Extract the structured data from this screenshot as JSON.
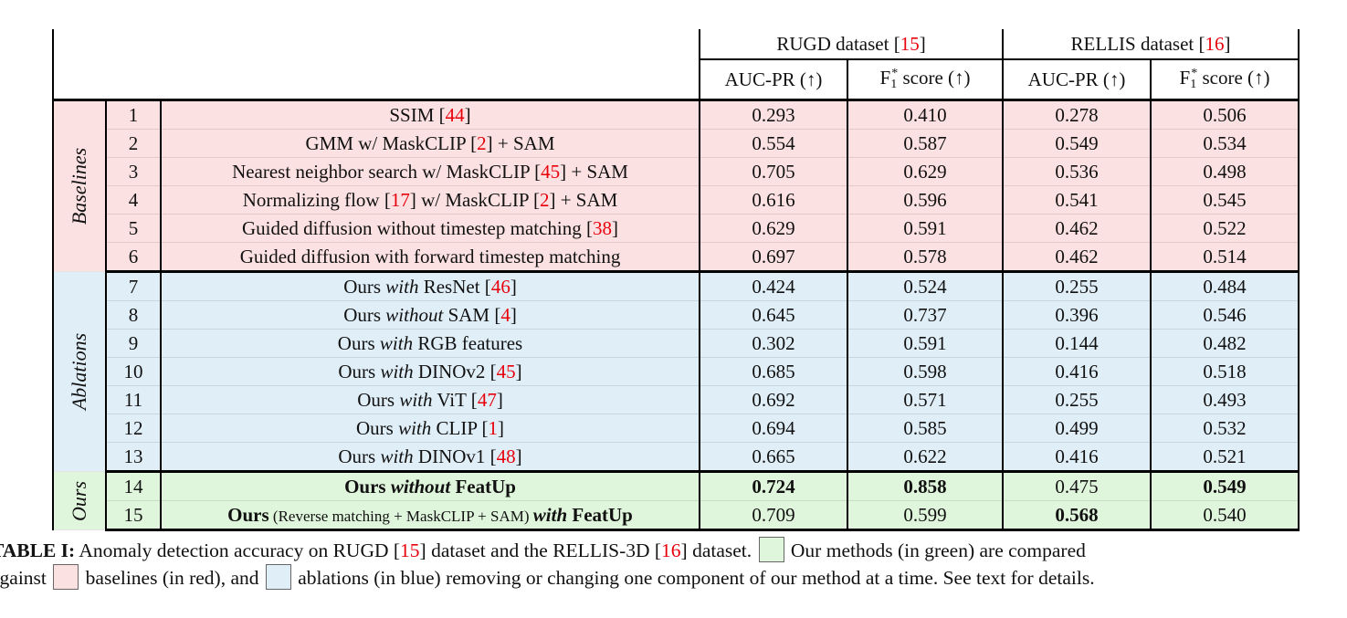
{
  "header": {
    "rugd": "RUGD dataset",
    "rugd_ref": "15",
    "rellis": "RELLIS dataset",
    "rellis_ref": "16",
    "auc": "AUC-PR (↑)",
    "f1_base": "F",
    "f1_sub": "1",
    "f1_sup": "*",
    "f1_rest": " score (↑)"
  },
  "groups": {
    "baselines": "Baselines",
    "ablations": "Ablations",
    "ours": "Ours"
  },
  "rows": [
    {
      "n": "1",
      "t1": "SSIM [",
      "r1": "44",
      "t2": "]",
      "v": [
        "0.293",
        "0.410",
        "0.278",
        "0.506"
      ]
    },
    {
      "n": "2",
      "t1": "GMM w/ MaskCLIP [",
      "r1": "2",
      "t2": "] + SAM",
      "v": [
        "0.554",
        "0.587",
        "0.549",
        "0.534"
      ]
    },
    {
      "n": "3",
      "t1": "Nearest neighbor search w/ MaskCLIP [",
      "r1": "45",
      "t2": "] + SAM",
      "v": [
        "0.705",
        "0.629",
        "0.536",
        "0.498"
      ]
    },
    {
      "n": "4",
      "t1": "Normalizing flow [",
      "r1": "17",
      "t2": "] w/ MaskCLIP [",
      "r2": "2",
      "t3": "] + SAM",
      "v": [
        "0.616",
        "0.596",
        "0.541",
        "0.545"
      ]
    },
    {
      "n": "5",
      "t1": "Guided diffusion without timestep matching [",
      "r1": "38",
      "t2": "]",
      "v": [
        "0.629",
        "0.591",
        "0.462",
        "0.522"
      ]
    },
    {
      "n": "6",
      "t1": "Guided diffusion with forward timestep matching",
      "v": [
        "0.697",
        "0.578",
        "0.462",
        "0.514"
      ]
    },
    {
      "n": "7",
      "t1": "Ours ",
      "it": "with",
      "t2": " ResNet [",
      "r1": "46",
      "t3": "]",
      "v": [
        "0.424",
        "0.524",
        "0.255",
        "0.484"
      ]
    },
    {
      "n": "8",
      "t1": "Ours ",
      "it": "without",
      "t2": " SAM [",
      "r1": "4",
      "t3": "]",
      "v": [
        "0.645",
        "0.737",
        "0.396",
        "0.546"
      ]
    },
    {
      "n": "9",
      "t1": "Ours ",
      "it": "with",
      "t2": " RGB features",
      "v": [
        "0.302",
        "0.591",
        "0.144",
        "0.482"
      ]
    },
    {
      "n": "10",
      "t1": "Ours ",
      "it": "with",
      "t2": " DINOv2 [",
      "r1": "45",
      "t3": "]",
      "v": [
        "0.685",
        "0.598",
        "0.416",
        "0.518"
      ]
    },
    {
      "n": "11",
      "t1": "Ours ",
      "it": "with",
      "t2": " ViT [",
      "r1": "47",
      "t3": "]",
      "v": [
        "0.692",
        "0.571",
        "0.255",
        "0.493"
      ]
    },
    {
      "n": "12",
      "t1": "Ours ",
      "it": "with",
      "t2": " CLIP [",
      "r1": "1",
      "t3": "]",
      "v": [
        "0.694",
        "0.585",
        "0.499",
        "0.532"
      ]
    },
    {
      "n": "13",
      "t1": "Ours ",
      "it": "with",
      "t2": " DINOv1 [",
      "r1": "48",
      "t3": "]",
      "v": [
        "0.665",
        "0.622",
        "0.416",
        "0.521"
      ]
    },
    {
      "n": "14",
      "t1": "Ours ",
      "it": "without",
      "t2": " FeatUp",
      "v": [
        "0.724",
        "0.858",
        "0.475",
        "0.549"
      ]
    },
    {
      "n": "15",
      "t1": "Ours",
      "small": " (Reverse matching + MaskCLIP + SAM) ",
      "it": "with",
      "t2": " FeatUp",
      "v": [
        "0.709",
        "0.599",
        "0.568",
        "0.540"
      ]
    }
  ],
  "caption": {
    "label": "TABLE I:",
    "c1": " Anomaly detection accuracy on RUGD [",
    "r1": "15",
    "c2": "] dataset and the RELLIS-3D [",
    "r2": "16",
    "c3": "] dataset. ",
    "c4": " Our methods (in green) are compared",
    "c5": "against ",
    "c6": " baselines (in red), and ",
    "c7": " ablations (in blue) removing or changing one component of our method at a time. See text for details."
  },
  "colors": {
    "baselines": "#fce1e2",
    "ablations": "#e0eef8",
    "ours": "#e0f6dc",
    "ref": "#e8000b"
  }
}
